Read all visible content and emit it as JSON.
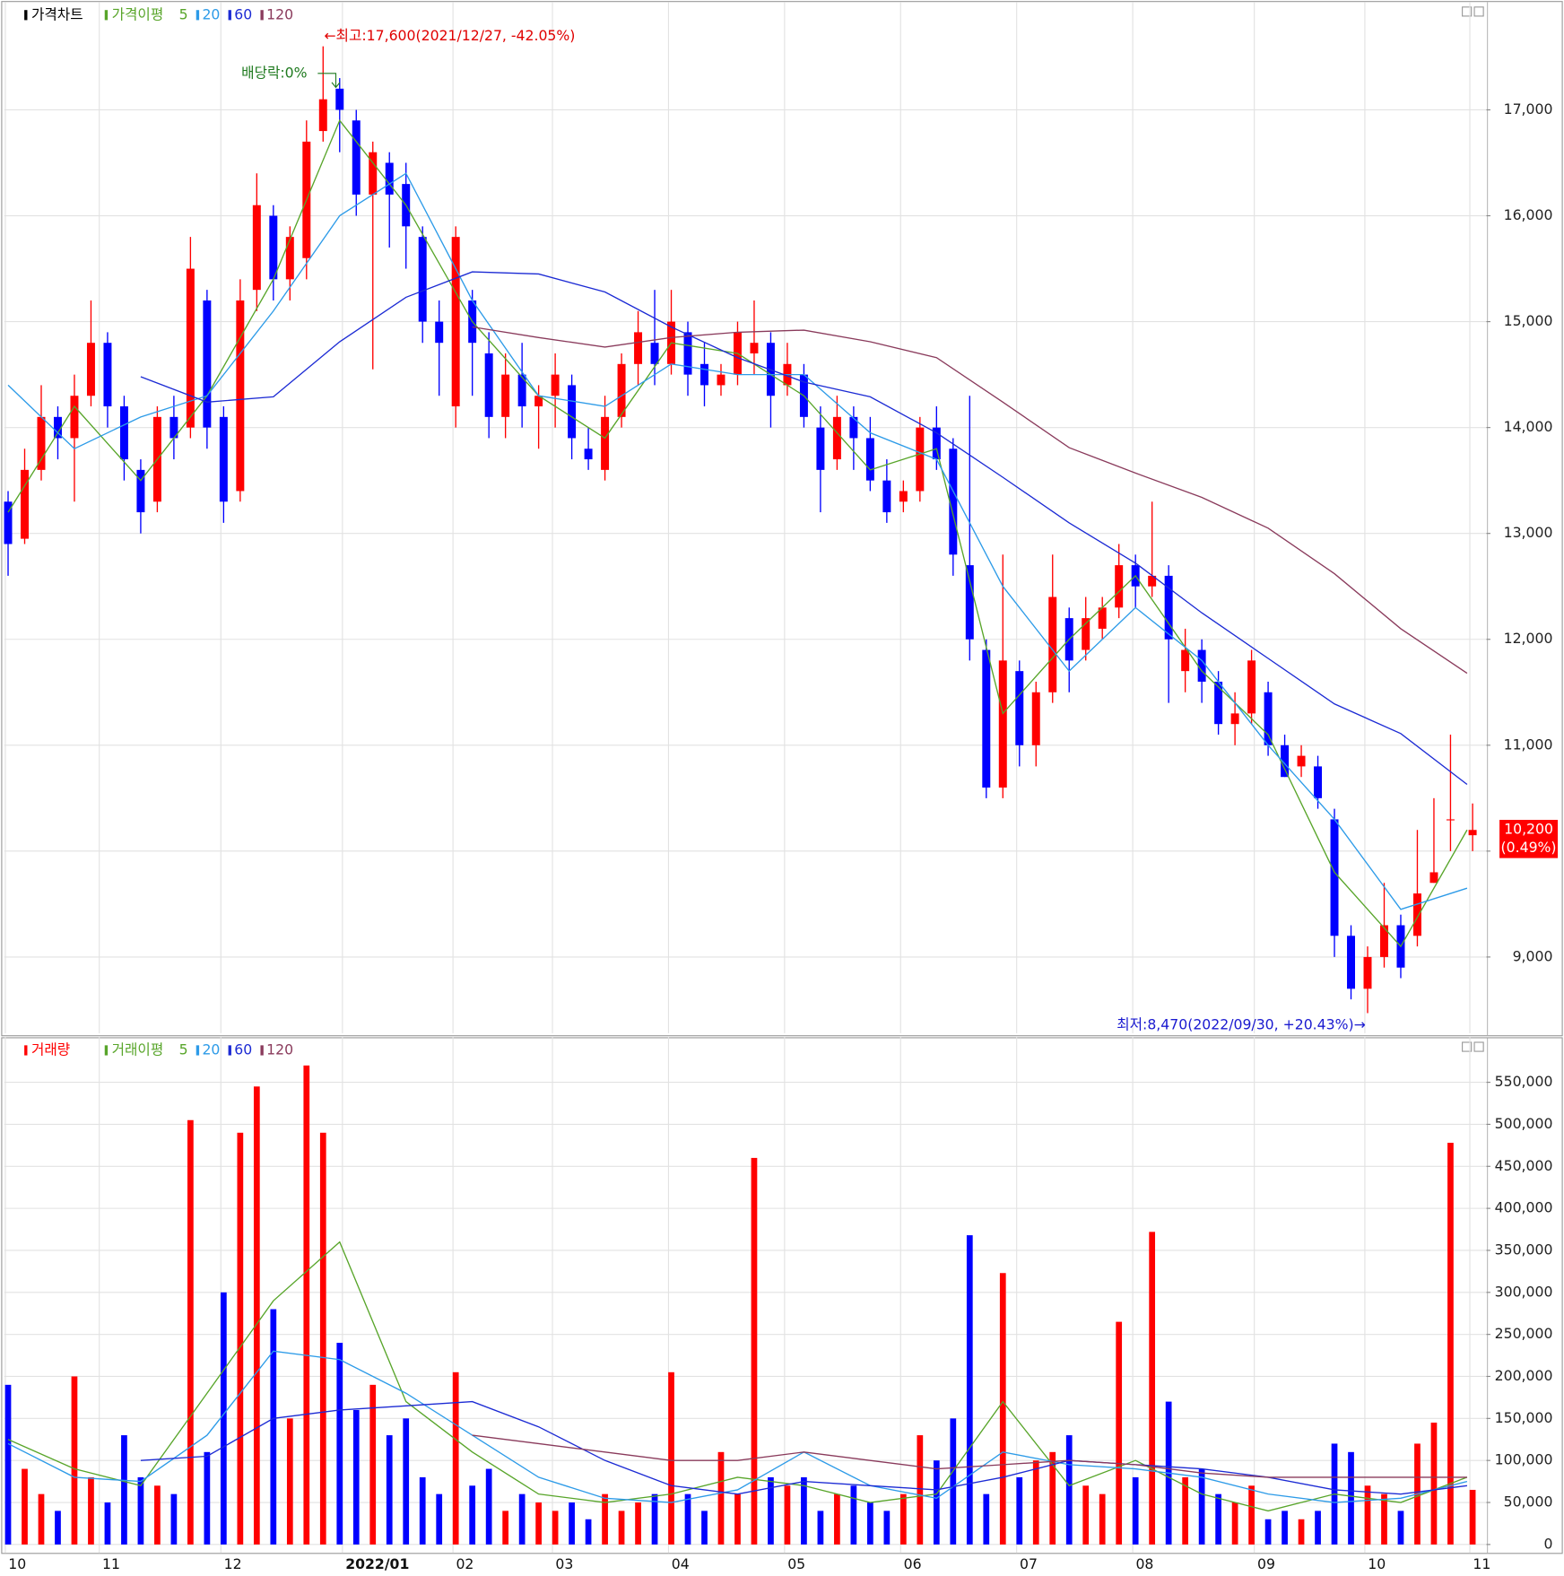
{
  "chart_data": [
    {
      "type": "candlestick",
      "name": "가격차트",
      "up_color": "#ff0000",
      "down_color": "#0000ff",
      "x": [
        0,
        3,
        6,
        9,
        12,
        15,
        18,
        21,
        24,
        27,
        30,
        33,
        36,
        39,
        42,
        45,
        48,
        51,
        54,
        57,
        60,
        63,
        66,
        69,
        72,
        75,
        78,
        81,
        84,
        87,
        90,
        93,
        96,
        99,
        102,
        105,
        108,
        111,
        114,
        117,
        120,
        123,
        126,
        129,
        132,
        135,
        138,
        141,
        144,
        147,
        150,
        153,
        156,
        159,
        162,
        165,
        168,
        171,
        174,
        177,
        180,
        183,
        186,
        189,
        192,
        195,
        198,
        201,
        204,
        207,
        210,
        213,
        216,
        219,
        222,
        225,
        228,
        231,
        234,
        237,
        240,
        243,
        246,
        249,
        252,
        255,
        258,
        261,
        265
      ],
      "open": [
        13300,
        12950,
        13600,
        14100,
        13900,
        14300,
        14800,
        14200,
        13600,
        13300,
        14100,
        14000,
        15200,
        14100,
        13400,
        15300,
        16000,
        15400,
        15600,
        16800,
        17200,
        16900,
        16200,
        16500,
        16300,
        15800,
        15000,
        14200,
        15200,
        14700,
        14100,
        14500,
        14200,
        14300,
        14400,
        13800,
        13600,
        14100,
        14600,
        14800,
        14600,
        14900,
        14600,
        14400,
        14500,
        14700,
        14800,
        14400,
        14500,
        14000,
        13700,
        14100,
        13900,
        13500,
        13300,
        13400,
        14000,
        13800,
        12700,
        11900,
        10600,
        11700,
        11000,
        11500,
        12200,
        11900,
        12100,
        12300,
        12700,
        12500,
        12600,
        11700,
        11900,
        11600,
        11200,
        11300,
        11500,
        11000,
        10800,
        10800,
        10300,
        9200,
        8700,
        9000,
        9300,
        9200,
        9700,
        10300,
        10150
      ],
      "high": [
        13400,
        13800,
        14400,
        14200,
        14500,
        15200,
        14900,
        14300,
        13700,
        14200,
        14300,
        15800,
        15300,
        14200,
        15400,
        16400,
        16100,
        15900,
        16900,
        17600,
        17300,
        17000,
        16700,
        16600,
        16500,
        15900,
        15200,
        15900,
        15300,
        14900,
        14700,
        14800,
        14400,
        14700,
        14500,
        14000,
        14300,
        14700,
        15100,
        15300,
        15300,
        15000,
        14800,
        14600,
        15000,
        15200,
        14900,
        14800,
        14600,
        14200,
        14300,
        14200,
        14100,
        13700,
        13500,
        14100,
        14200,
        13900,
        14300,
        12000,
        12800,
        11800,
        11600,
        12800,
        12300,
        12400,
        12400,
        12900,
        12800,
        13300,
        12700,
        12100,
        12000,
        11700,
        11500,
        11900,
        11600,
        11100,
        11000,
        10900,
        10400,
        9300,
        9100,
        9700,
        9400,
        10200,
        10500,
        11100,
        10450
      ],
      "low": [
        12600,
        12900,
        13500,
        13700,
        13300,
        14200,
        14000,
        13500,
        13000,
        13200,
        13700,
        13900,
        13800,
        13100,
        13300,
        15100,
        15200,
        15200,
        15400,
        16700,
        16600,
        16000,
        14550,
        15700,
        15500,
        14800,
        14300,
        14000,
        14300,
        13900,
        13900,
        14000,
        13800,
        14000,
        13700,
        13600,
        13500,
        14000,
        14400,
        14400,
        14500,
        14300,
        14200,
        14300,
        14400,
        14500,
        14000,
        14300,
        14000,
        13200,
        13600,
        13600,
        13400,
        13100,
        13200,
        13300,
        13600,
        12600,
        11800,
        10500,
        10500,
        10800,
        10800,
        11400,
        11500,
        11800,
        12000,
        12200,
        12300,
        12400,
        11400,
        11500,
        11400,
        11100,
        11000,
        11200,
        10900,
        10700,
        10700,
        10400,
        9000,
        8600,
        8470,
        8900,
        8800,
        9100,
        9700,
        10000,
        10000
      ],
      "close": [
        12900,
        13600,
        14100,
        13900,
        14300,
        14800,
        14200,
        13700,
        13200,
        14100,
        13900,
        15500,
        14000,
        13300,
        15200,
        16100,
        15400,
        15800,
        16700,
        17100,
        17000,
        16200,
        16600,
        16200,
        15900,
        15000,
        14800,
        15800,
        14800,
        14100,
        14500,
        14200,
        14300,
        14500,
        13900,
        13700,
        14100,
        14600,
        14900,
        14600,
        15000,
        14500,
        14400,
        14500,
        14900,
        14800,
        14300,
        14600,
        14100,
        13600,
        14100,
        13900,
        13500,
        13200,
        13400,
        14000,
        13700,
        12800,
        12000,
        10600,
        11800,
        11000,
        11500,
        12400,
        11800,
        12200,
        12300,
        12700,
        12500,
        12600,
        12000,
        11900,
        11600,
        11200,
        11300,
        11800,
        11000,
        10700,
        10900,
        10500,
        9200,
        8700,
        9000,
        9300,
        8900,
        9600,
        9800,
        10300,
        10200
      ],
      "xlim": [
        -0.7,
        267.5
      ],
      "ylim": [
        8280,
        17990
      ],
      "yticks": [
        {
          "value": 9000,
          "label": "9,000"
        },
        {
          "value": 10000,
          "label": "10,000"
        },
        {
          "value": 11000,
          "label": "11,000"
        },
        {
          "value": 12000,
          "label": "12,000"
        },
        {
          "value": 13000,
          "label": "13,000"
        },
        {
          "value": 14000,
          "label": "14,000"
        },
        {
          "value": 15000,
          "label": "15,000"
        },
        {
          "value": 16000,
          "label": "16,000"
        },
        {
          "value": 17000,
          "label": "17,000"
        }
      ],
      "ma_label": "가격이평",
      "ma_x": [
        0,
        12,
        24,
        36,
        48,
        60,
        72,
        84,
        96,
        108,
        120,
        132,
        144,
        156,
        168,
        180,
        192,
        204,
        216,
        228,
        240,
        252,
        264
      ],
      "ma_series": [
        {
          "name": "5",
          "color": "#58a52a",
          "values": [
            13200,
            14200,
            13500,
            14300,
            15400,
            16900,
            16100,
            15000,
            14300,
            13900,
            14800,
            14700,
            14300,
            13600,
            13800,
            11300,
            12000,
            12600,
            11700,
            11100,
            9800,
            9100,
            10200
          ]
        },
        {
          "name": "20",
          "color": "#2d9be8",
          "values": [
            14400,
            13800,
            14100,
            14300,
            15100,
            16000,
            16400,
            15200,
            14300,
            14200,
            14600,
            14500,
            14500,
            13950,
            13700,
            12500,
            11700,
            12300,
            11800,
            11000,
            10300,
            9450,
            9650
          ]
        },
        {
          "name": "60",
          "color": "#1c2bd4",
          "values": [
            null,
            null,
            14480,
            14240,
            14290,
            14810,
            15230,
            15470,
            15450,
            15280,
            14950,
            14660,
            14430,
            14290,
            13950,
            13530,
            13100,
            12720,
            12250,
            11820,
            11390,
            11110,
            10630
          ]
        },
        {
          "name": "120",
          "color": "#8a3b5c",
          "values": [
            null,
            null,
            null,
            null,
            null,
            null,
            null,
            14950,
            14850,
            14760,
            14850,
            14900,
            14920,
            14810,
            14660,
            14240,
            13810,
            13570,
            13340,
            13050,
            12620,
            12100,
            11680
          ]
        }
      ],
      "high_annotation": "←최고:17,600(2021/12/27, -42.05%)",
      "low_annotation": "최저:8,470(2022/09/30, +20.43%)→",
      "dividend_annotation": "배당락:0%",
      "last_price_label": "10,200",
      "last_change_label": "(0.49%)"
    },
    {
      "type": "bar",
      "name": "거래량",
      "x": [
        0,
        3,
        6,
        9,
        12,
        15,
        18,
        21,
        24,
        27,
        30,
        33,
        36,
        39,
        42,
        45,
        48,
        51,
        54,
        57,
        60,
        63,
        66,
        69,
        72,
        75,
        78,
        81,
        84,
        87,
        90,
        93,
        96,
        99,
        102,
        105,
        108,
        111,
        114,
        117,
        120,
        123,
        126,
        129,
        132,
        135,
        138,
        141,
        144,
        147,
        150,
        153,
        156,
        159,
        162,
        165,
        168,
        171,
        174,
        177,
        180,
        183,
        186,
        189,
        192,
        195,
        198,
        201,
        204,
        207,
        210,
        213,
        216,
        219,
        222,
        225,
        228,
        231,
        234,
        237,
        240,
        243,
        246,
        249,
        252,
        255,
        258,
        261,
        265
      ],
      "values": [
        190000,
        90000,
        60000,
        40000,
        200000,
        80000,
        50000,
        130000,
        80000,
        70000,
        60000,
        505000,
        110000,
        300000,
        490000,
        545000,
        280000,
        150000,
        570000,
        490000,
        240000,
        160000,
        190000,
        130000,
        150000,
        80000,
        60000,
        205000,
        70000,
        90000,
        40000,
        60000,
        50000,
        40000,
        50000,
        30000,
        60000,
        40000,
        50000,
        60000,
        205000,
        60000,
        40000,
        110000,
        60000,
        460000,
        80000,
        70000,
        80000,
        40000,
        60000,
        70000,
        50000,
        40000,
        60000,
        130000,
        100000,
        150000,
        368000,
        60000,
        323000,
        80000,
        100000,
        110000,
        130000,
        70000,
        60000,
        265000,
        80000,
        372000,
        170000,
        80000,
        90000,
        60000,
        50000,
        70000,
        30000,
        40000,
        30000,
        40000,
        120000,
        110000,
        70000,
        60000,
        40000,
        120000,
        145000,
        478000,
        65000
      ],
      "xlim": [
        -0.7,
        267.5
      ],
      "ylim": [
        -10000,
        600000
      ],
      "yticks": [
        0,
        {
          "value": 50000,
          "label": "50,000"
        },
        {
          "value": 100000,
          "label": "100,000"
        },
        {
          "value": 150000,
          "label": "150,000"
        },
        {
          "value": 200000,
          "label": "200,000"
        },
        {
          "value": 250000,
          "label": "250,000"
        },
        {
          "value": 300000,
          "label": "300,000"
        },
        {
          "value": 350000,
          "label": "350,000"
        },
        {
          "value": 400000,
          "label": "400,000"
        },
        {
          "value": 450000,
          "label": "450,000"
        },
        {
          "value": 500000,
          "label": "500,000"
        },
        {
          "value": 550000,
          "label": "550,000"
        }
      ],
      "xticks": [
        {
          "value": 0,
          "label": "10"
        },
        {
          "value": 17,
          "label": "11"
        },
        {
          "value": 39,
          "label": "12"
        },
        {
          "value": 61,
          "label": "2022/01"
        },
        {
          "value": 81,
          "label": "02"
        },
        {
          "value": 99,
          "label": "03"
        },
        {
          "value": 120,
          "label": "04"
        },
        {
          "value": 141,
          "label": "05"
        },
        {
          "value": 162,
          "label": "06"
        },
        {
          "value": 183,
          "label": "07"
        },
        {
          "value": 204,
          "label": "08"
        },
        {
          "value": 226,
          "label": "09"
        },
        {
          "value": 246,
          "label": "10"
        },
        {
          "value": 265,
          "label": "11"
        }
      ],
      "ma_label": "거래이평",
      "ma_x": [
        0,
        12,
        24,
        36,
        48,
        60,
        72,
        84,
        96,
        108,
        120,
        132,
        144,
        156,
        168,
        180,
        192,
        204,
        216,
        228,
        240,
        252,
        264
      ],
      "ma_series": [
        {
          "name": "5",
          "color": "#58a52a",
          "values": [
            125000,
            90000,
            70000,
            180000,
            290000,
            360000,
            170000,
            110000,
            60000,
            50000,
            60000,
            80000,
            70000,
            50000,
            60000,
            170000,
            70000,
            100000,
            60000,
            40000,
            60000,
            50000,
            80000
          ]
        },
        {
          "name": "20",
          "color": "#2d9be8",
          "values": [
            120000,
            80000,
            75000,
            130000,
            230000,
            220000,
            180000,
            130000,
            80000,
            55000,
            50000,
            65000,
            110000,
            70000,
            55000,
            110000,
            95000,
            90000,
            80000,
            60000,
            50000,
            55000,
            75000
          ]
        },
        {
          "name": "60",
          "color": "#1c2bd4",
          "values": [
            null,
            null,
            100000,
            105000,
            150000,
            160000,
            165000,
            170000,
            140000,
            100000,
            70000,
            60000,
            75000,
            70000,
            65000,
            80000,
            100000,
            95000,
            90000,
            80000,
            65000,
            60000,
            70000
          ]
        },
        {
          "name": "120",
          "color": "#8a3b5c",
          "values": [
            null,
            null,
            null,
            null,
            null,
            null,
            null,
            130000,
            120000,
            110000,
            100000,
            100000,
            110000,
            100000,
            90000,
            95000,
            100000,
            95000,
            85000,
            80000,
            80000,
            80000,
            80000
          ]
        }
      ]
    }
  ]
}
